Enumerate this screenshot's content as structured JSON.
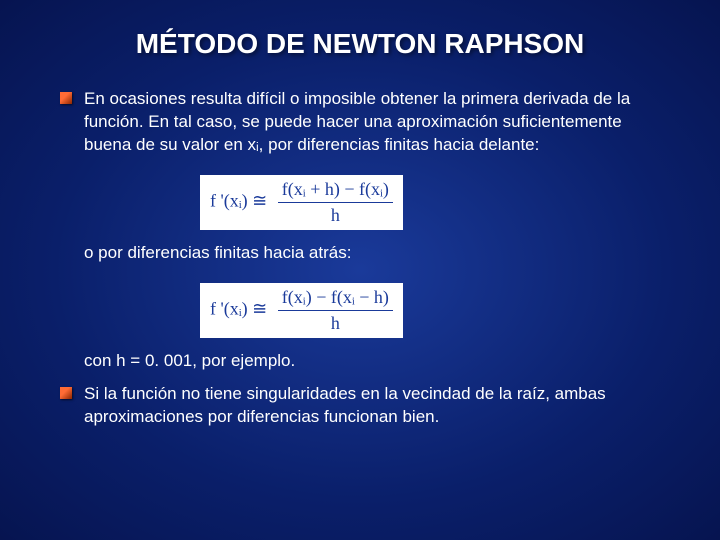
{
  "title": "MÉTODO DE NEWTON RAPHSON",
  "bullets": [
    {
      "text": "En ocasiones resulta difícil o imposible obtener la primera derivada de la función.  En tal caso, se puede hacer una aproximación suficientemente buena de su valor en xᵢ, por diferencias finitas hacia delante:"
    }
  ],
  "formula1": {
    "lhs": "f '(xᵢ) ≅",
    "num": "f(xᵢ + h) − f(xᵢ)",
    "den": "h"
  },
  "mid_text": "o por diferencias finitas hacia atrás:",
  "formula2": {
    "lhs": "f '(xᵢ) ≅",
    "num": "f(xᵢ) − f(xᵢ − h)",
    "den": "h"
  },
  "post_text": "con h = 0. 001, por ejemplo.",
  "bullet2": "Si la función no tiene singularidades en la vecindad de la raíz, ambas aproximaciones por diferencias funcionan bien.",
  "colors": {
    "bg_center": "#1a3a9a",
    "bg_outer": "#061450",
    "text": "#ffffff",
    "bullet_top": "#ff6b35",
    "bullet_bottom": "#8b2500",
    "formula_bg": "#ffffff",
    "formula_fg": "#1a3a9a"
  }
}
